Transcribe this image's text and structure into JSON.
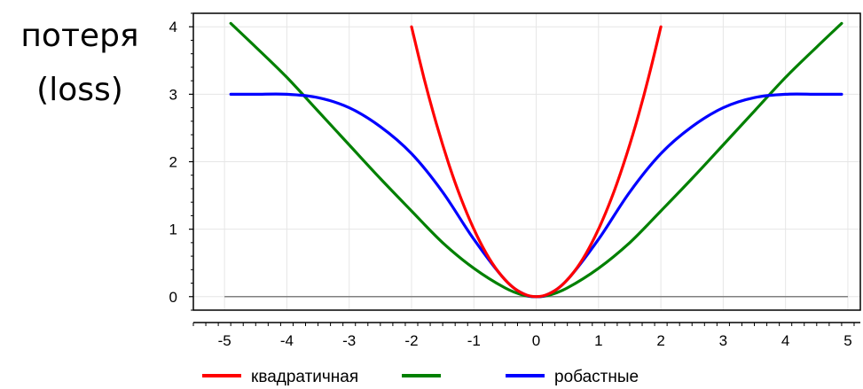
{
  "chart_data": {
    "type": "line",
    "title": "",
    "ylabel_lines": [
      "потеря",
      "(loss)"
    ],
    "xlabel": "",
    "xlim": [
      -5.5,
      5.2
    ],
    "ylim": [
      -0.2,
      4.2
    ],
    "xticks": [
      -5,
      -4,
      -3,
      -2,
      -1,
      0,
      1,
      2,
      3,
      4,
      5
    ],
    "yticks": [
      0,
      1,
      2,
      3,
      4
    ],
    "grid": true,
    "legend_position": "bottom",
    "series": [
      {
        "name": "квадратичная",
        "color": "#ff0000",
        "x": [
          -2.0,
          -1.8,
          -1.6,
          -1.4,
          -1.2,
          -1.0,
          -0.8,
          -0.6,
          -0.4,
          -0.2,
          0.0,
          0.2,
          0.4,
          0.6,
          0.8,
          1.0,
          1.2,
          1.4,
          1.6,
          1.8,
          2.0
        ],
        "y": [
          4.0,
          3.24,
          2.56,
          1.96,
          1.44,
          1.0,
          0.64,
          0.36,
          0.16,
          0.04,
          0.0,
          0.04,
          0.16,
          0.36,
          0.64,
          1.0,
          1.44,
          1.96,
          2.56,
          3.24,
          4.0
        ]
      },
      {
        "name": "",
        "color": "#008000",
        "x": [
          -4.9,
          -4.5,
          -4.0,
          -3.5,
          -3.0,
          -2.5,
          -2.0,
          -1.5,
          -1.0,
          -0.5,
          -0.2,
          0.0,
          0.2,
          0.5,
          1.0,
          1.5,
          2.0,
          2.5,
          3.0,
          3.5,
          4.0,
          4.5,
          4.9
        ],
        "y": [
          4.05,
          3.7,
          3.25,
          2.75,
          2.25,
          1.75,
          1.27,
          0.8,
          0.42,
          0.13,
          0.02,
          0.0,
          0.02,
          0.13,
          0.42,
          0.8,
          1.27,
          1.75,
          2.25,
          2.75,
          3.25,
          3.7,
          4.05
        ]
      },
      {
        "name": "робастные",
        "color": "#0000ff",
        "x": [
          -4.9,
          -4.5,
          -4.0,
          -3.5,
          -3.0,
          -2.5,
          -2.0,
          -1.5,
          -1.0,
          -0.5,
          -0.2,
          0.0,
          0.2,
          0.5,
          1.0,
          1.5,
          2.0,
          2.5,
          3.0,
          3.5,
          4.0,
          4.5,
          4.9
        ],
        "y": [
          3.0,
          3.0,
          3.0,
          2.95,
          2.8,
          2.52,
          2.12,
          1.55,
          0.85,
          0.25,
          0.04,
          0.0,
          0.04,
          0.25,
          0.85,
          1.55,
          2.12,
          2.52,
          2.8,
          2.95,
          3.0,
          3.0,
          3.0
        ]
      }
    ]
  }
}
